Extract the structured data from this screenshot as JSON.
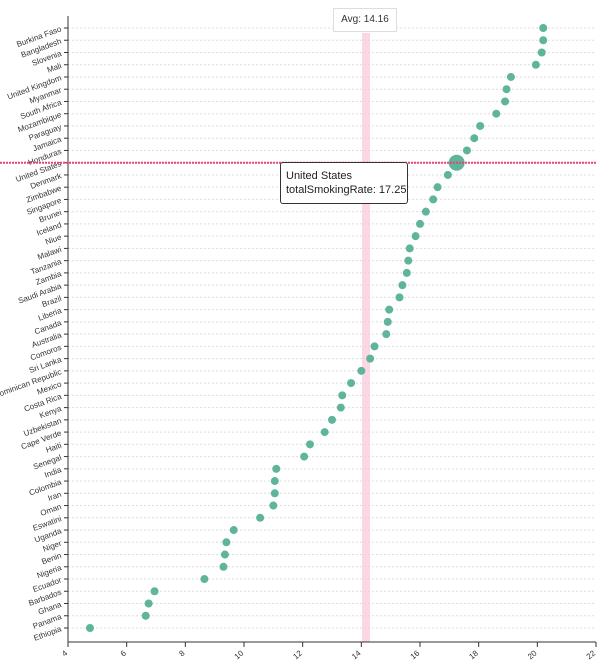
{
  "chart_data": {
    "type": "scatter",
    "title": "",
    "xlabel": "",
    "ylabel": "",
    "xlim": [
      4,
      22
    ],
    "x_ticks": [
      "4",
      "6",
      "8",
      "10",
      "12",
      "14",
      "16",
      "18",
      "20",
      "22"
    ],
    "average": {
      "label": "Avg: 14.16",
      "value": 14.16
    },
    "highlight": {
      "country": "United States",
      "value": 17.25
    },
    "tooltip": {
      "title": "United States",
      "line": "totalSmokingRate: 17.25"
    },
    "colors": {
      "dot": "#5fb49c",
      "avg_band": "#f9c9dd",
      "highlight_line": "#e0457b"
    },
    "points": [
      {
        "country": "Burkina Faso",
        "value": 20.2
      },
      {
        "country": "Bangladesh",
        "value": 20.2
      },
      {
        "country": "Slovenia",
        "value": 20.15
      },
      {
        "country": "Mali",
        "value": 19.95
      },
      {
        "country": "United Kingdom",
        "value": 19.1
      },
      {
        "country": "Myanmar",
        "value": 18.95
      },
      {
        "country": "South Africa",
        "value": 18.9
      },
      {
        "country": "Mozambique",
        "value": 18.6
      },
      {
        "country": "Paraguay",
        "value": 18.05
      },
      {
        "country": "Jamaica",
        "value": 17.85
      },
      {
        "country": "Honduras",
        "value": 17.6
      },
      {
        "country": "United States",
        "value": 17.25
      },
      {
        "country": "Denmark",
        "value": 16.95
      },
      {
        "country": "Zimbabwe",
        "value": 16.6
      },
      {
        "country": "Singapore",
        "value": 16.45
      },
      {
        "country": "Brunei",
        "value": 16.2
      },
      {
        "country": "Iceland",
        "value": 16.0
      },
      {
        "country": "Niue",
        "value": 15.85
      },
      {
        "country": "Malawi",
        "value": 15.65
      },
      {
        "country": "Tanzania",
        "value": 15.6
      },
      {
        "country": "Zambia",
        "value": 15.55
      },
      {
        "country": "Saudi Arabia",
        "value": 15.4
      },
      {
        "country": "Brazil",
        "value": 15.3
      },
      {
        "country": "Liberia",
        "value": 14.95
      },
      {
        "country": "Canada",
        "value": 14.9
      },
      {
        "country": "Australia",
        "value": 14.85
      },
      {
        "country": "Comoros",
        "value": 14.45
      },
      {
        "country": "Sri Lanka",
        "value": 14.3
      },
      {
        "country": "Dominican Republic",
        "value": 14.0
      },
      {
        "country": "Mexico",
        "value": 13.65
      },
      {
        "country": "Costa Rica",
        "value": 13.35
      },
      {
        "country": "Kenya",
        "value": 13.3
      },
      {
        "country": "Uzbekistan",
        "value": 13.0
      },
      {
        "country": "Cape Verde",
        "value": 12.75
      },
      {
        "country": "Haiti",
        "value": 12.25
      },
      {
        "country": "Senegal",
        "value": 12.05
      },
      {
        "country": "India",
        "value": 11.1
      },
      {
        "country": "Colombia",
        "value": 11.05
      },
      {
        "country": "Iran",
        "value": 11.05
      },
      {
        "country": "Oman",
        "value": 11.0
      },
      {
        "country": "Eswatini",
        "value": 10.55
      },
      {
        "country": "Uganda",
        "value": 9.65
      },
      {
        "country": "Niger",
        "value": 9.4
      },
      {
        "country": "Benin",
        "value": 9.35
      },
      {
        "country": "Nigeria",
        "value": 9.3
      },
      {
        "country": "Ecuador",
        "value": 8.65
      },
      {
        "country": "Barbados",
        "value": 6.95
      },
      {
        "country": "Ghana",
        "value": 6.75
      },
      {
        "country": "Panama",
        "value": 6.65
      },
      {
        "country": "Ethiopia",
        "value": 4.75
      }
    ]
  }
}
